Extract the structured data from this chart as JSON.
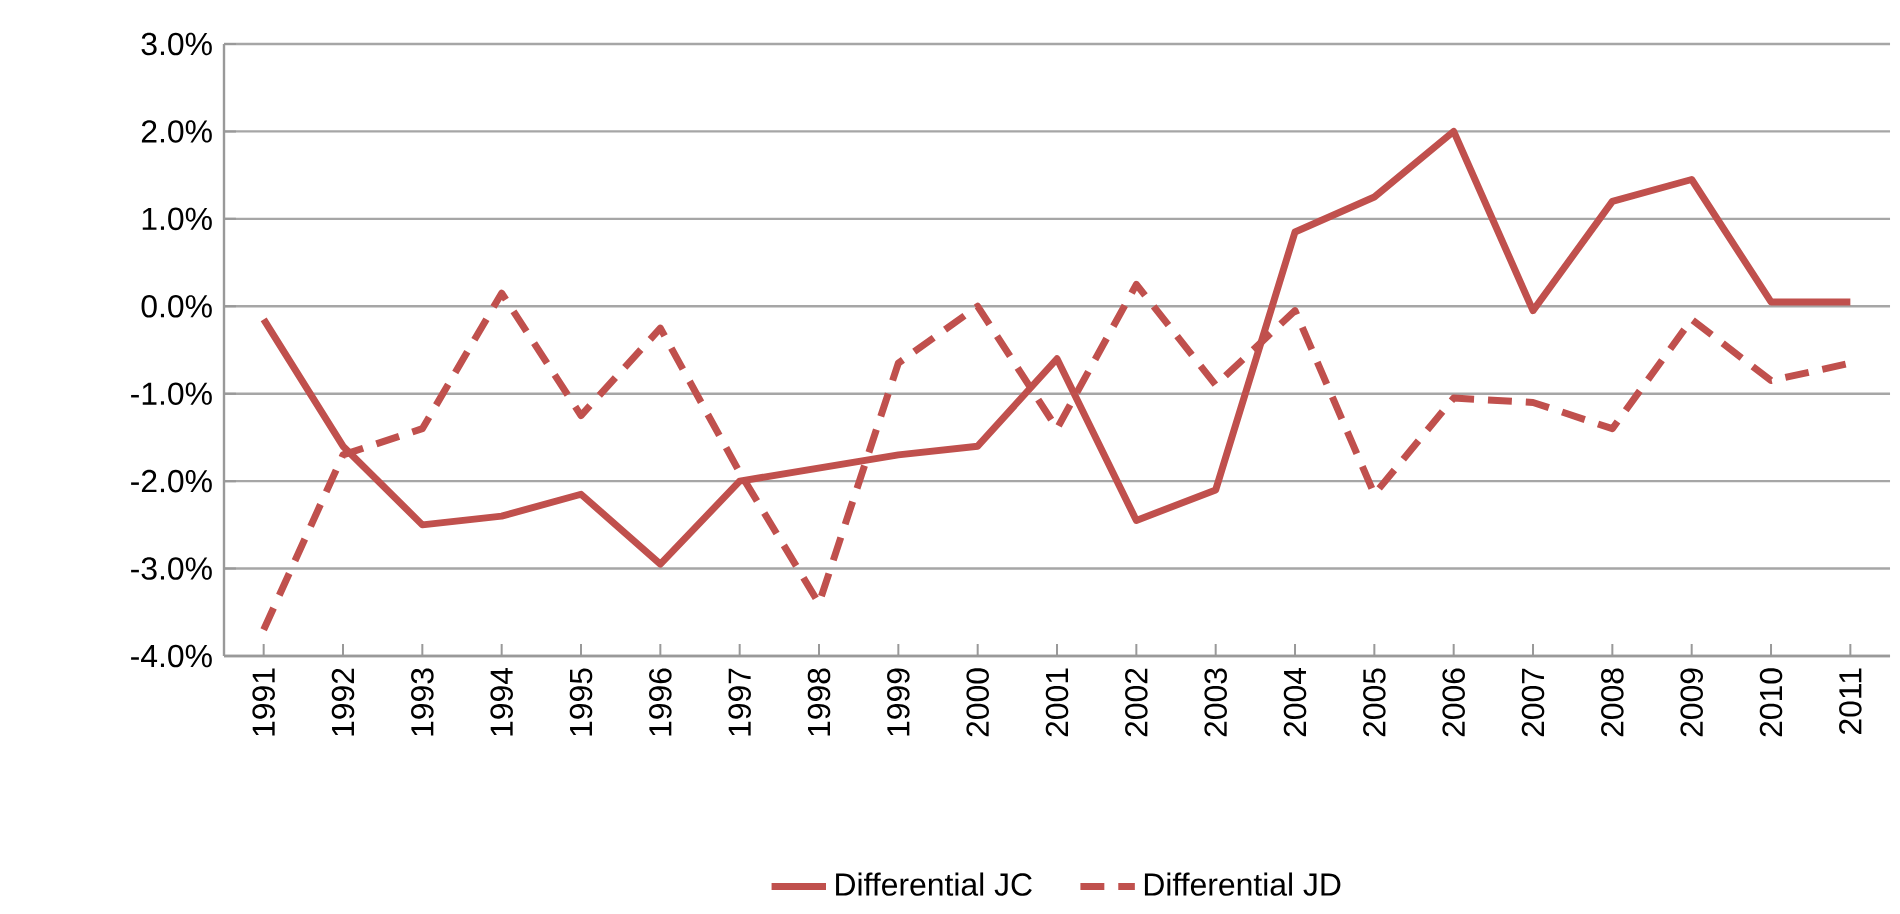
{
  "chart_data": {
    "type": "line",
    "categories": [
      "1991",
      "1992",
      "1993",
      "1994",
      "1995",
      "1996",
      "1997",
      "1998",
      "1999",
      "2000",
      "2001",
      "2002",
      "2003",
      "2004",
      "2005",
      "2006",
      "2007",
      "2008",
      "2009",
      "2010",
      "2011"
    ],
    "series": [
      {
        "name": "Differential JC",
        "color": "#c0504d",
        "line_style": "solid",
        "values": [
          -0.15,
          -1.6,
          -2.5,
          -2.4,
          -2.15,
          -2.95,
          -2.0,
          -1.85,
          -1.7,
          -1.6,
          -0.6,
          -2.45,
          -2.1,
          0.85,
          1.25,
          2.0,
          -0.05,
          1.2,
          1.45,
          0.05,
          0.05
        ]
      },
      {
        "name": "Differential JD",
        "color": "#c0504d",
        "line_style": "dashed",
        "values": [
          -3.7,
          -1.7,
          -1.4,
          0.15,
          -1.25,
          -0.25,
          -1.9,
          -3.4,
          -0.65,
          0.0,
          -1.4,
          0.25,
          -0.9,
          -0.05,
          -2.15,
          -1.05,
          -1.1,
          -1.4,
          -0.15,
          -0.85,
          -0.65
        ]
      }
    ],
    "ylim": [
      -4,
      3
    ],
    "yticks": [
      {
        "value": -4,
        "label": "-4.0%"
      },
      {
        "value": -3,
        "label": "-3.0%"
      },
      {
        "value": -2,
        "label": "-2.0%"
      },
      {
        "value": -1,
        "label": "-1.0%"
      },
      {
        "value": 0,
        "label": "0.0%"
      },
      {
        "value": 1,
        "label": "1.0%"
      },
      {
        "value": 2,
        "label": "2.0%"
      },
      {
        "value": 3,
        "label": "3.0%"
      }
    ],
    "grid": "y",
    "legend": "bottom",
    "marker": "none"
  }
}
